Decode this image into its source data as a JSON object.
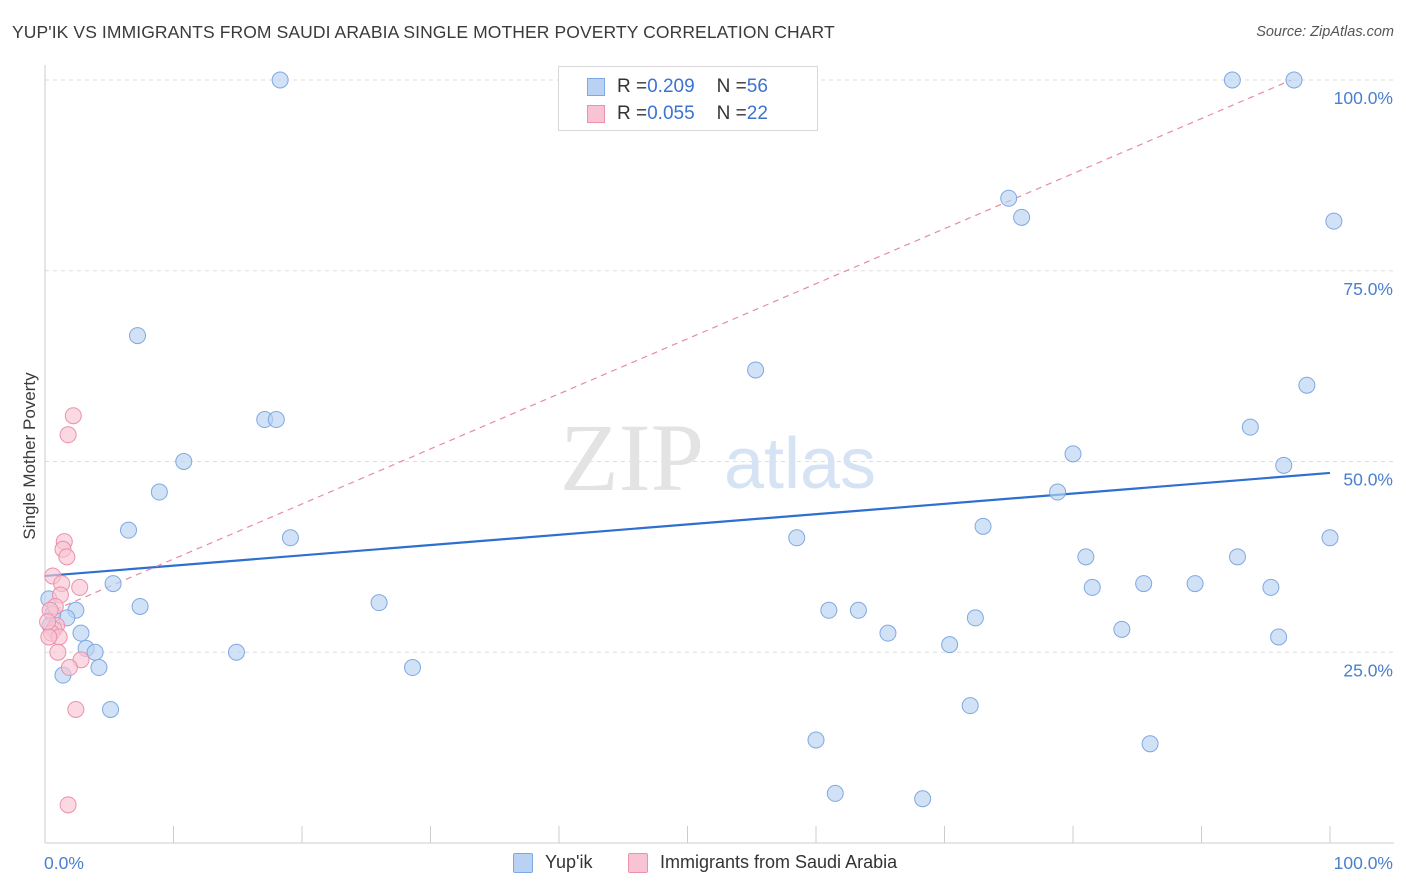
{
  "title": "YUP'IK VS IMMIGRANTS FROM SAUDI ARABIA SINGLE MOTHER POVERTY CORRELATION CHART",
  "source": "Source: ZipAtlas.com",
  "watermark": {
    "zip": "ZIP",
    "atlas": "atlas"
  },
  "legend": {
    "rows": [
      {
        "r_label": "R = ",
        "r_value": "0.209",
        "n_label": "N = ",
        "n_value": "56"
      },
      {
        "r_label": "R = ",
        "r_value": "0.055",
        "n_label": "N = ",
        "n_value": "22"
      }
    ]
  },
  "bottom_legend": [
    "Yup'ik",
    "Immigrants from Saudi Arabia"
  ],
  "colors": {
    "blue_fill": "#b9d2f3",
    "blue_stroke": "#7fa8e2",
    "blue_line": "#2f6fd0",
    "pink_fill": "#f8c4d3",
    "pink_stroke": "#ee8fab",
    "pink_line": "#e88aa6",
    "grid": "#dddddd",
    "tick_text": "#4a7fd0"
  },
  "chart_data": {
    "type": "scatter",
    "title": "YUP'IK VS IMMIGRANTS FROM SAUDI ARABIA SINGLE MOTHER POVERTY CORRELATION CHART",
    "xlabel": "",
    "ylabel": "Single Mother Poverty",
    "xlim": [
      0,
      100
    ],
    "ylim": [
      0,
      104
    ],
    "x_tick_labels": [
      "0.0%",
      "100.0%"
    ],
    "y_tick_labels": [
      "25.0%",
      "50.0%",
      "75.0%",
      "100.0%"
    ],
    "y_ticks": [
      25,
      50,
      75,
      100
    ],
    "grid": true,
    "series": [
      {
        "name": "Yup'ik",
        "color": "blue",
        "r": 0.209,
        "n": 56,
        "trend": {
          "x": [
            0,
            100
          ],
          "y": [
            35.0,
            48.5
          ],
          "style": "solid"
        },
        "points": [
          [
            18.3,
            100
          ],
          [
            92.4,
            100
          ],
          [
            97.2,
            100
          ],
          [
            7.2,
            66.5
          ],
          [
            55.3,
            62.0
          ],
          [
            17.1,
            55.5
          ],
          [
            18.0,
            55.5
          ],
          [
            10.8,
            50.0
          ],
          [
            8.9,
            46.0
          ],
          [
            6.5,
            41.0
          ],
          [
            19.1,
            40.0
          ],
          [
            75.0,
            84.5
          ],
          [
            76.0,
            82.0
          ],
          [
            100.3,
            81.5
          ],
          [
            98.2,
            60.0
          ],
          [
            93.8,
            54.5
          ],
          [
            80.0,
            51.0
          ],
          [
            96.4,
            49.5
          ],
          [
            78.8,
            46.0
          ],
          [
            73.0,
            41.5
          ],
          [
            58.5,
            40.0
          ],
          [
            100.0,
            40.0
          ],
          [
            81.0,
            37.5
          ],
          [
            92.8,
            37.5
          ],
          [
            81.5,
            33.5
          ],
          [
            85.5,
            34.0
          ],
          [
            89.5,
            34.0
          ],
          [
            95.4,
            33.5
          ],
          [
            5.3,
            34.0
          ],
          [
            7.4,
            31.0
          ],
          [
            26.0,
            31.5
          ],
          [
            61.0,
            30.5
          ],
          [
            63.3,
            30.5
          ],
          [
            72.4,
            29.5
          ],
          [
            83.8,
            28.0
          ],
          [
            65.6,
            27.5
          ],
          [
            70.4,
            26.0
          ],
          [
            96.0,
            27.0
          ],
          [
            0.3,
            32.0
          ],
          [
            2.4,
            30.5
          ],
          [
            1.7,
            29.5
          ],
          [
            0.6,
            30.0
          ],
          [
            2.8,
            27.5
          ],
          [
            3.2,
            25.5
          ],
          [
            3.9,
            25.0
          ],
          [
            4.2,
            23.0
          ],
          [
            1.4,
            22.0
          ],
          [
            14.9,
            25.0
          ],
          [
            28.6,
            23.0
          ],
          [
            5.1,
            17.5
          ],
          [
            72.0,
            18.0
          ],
          [
            60.0,
            13.5
          ],
          [
            86.0,
            13.0
          ],
          [
            61.5,
            6.5
          ],
          [
            68.3,
            5.8
          ],
          [
            0.4,
            28.5
          ]
        ]
      },
      {
        "name": "Immigrants from Saudi Arabia",
        "color": "pink",
        "r": 0.055,
        "n": 22,
        "trend": {
          "x": [
            0,
            97
          ],
          "y": [
            30.0,
            100.0
          ],
          "style": "dashed"
        },
        "points": [
          [
            2.2,
            56.0
          ],
          [
            1.8,
            53.5
          ],
          [
            1.5,
            39.5
          ],
          [
            1.4,
            38.5
          ],
          [
            1.7,
            37.5
          ],
          [
            0.6,
            35.0
          ],
          [
            1.3,
            34.0
          ],
          [
            2.7,
            33.5
          ],
          [
            1.2,
            32.5
          ],
          [
            0.8,
            31.0
          ],
          [
            0.4,
            30.5
          ],
          [
            0.9,
            28.5
          ],
          [
            0.7,
            28.0
          ],
          [
            0.5,
            27.5
          ],
          [
            1.1,
            27.0
          ],
          [
            0.3,
            27.0
          ],
          [
            1.0,
            25.0
          ],
          [
            2.8,
            24.0
          ],
          [
            1.9,
            23.0
          ],
          [
            2.4,
            17.5
          ],
          [
            1.8,
            5.0
          ],
          [
            0.2,
            29.0
          ]
        ]
      }
    ]
  }
}
